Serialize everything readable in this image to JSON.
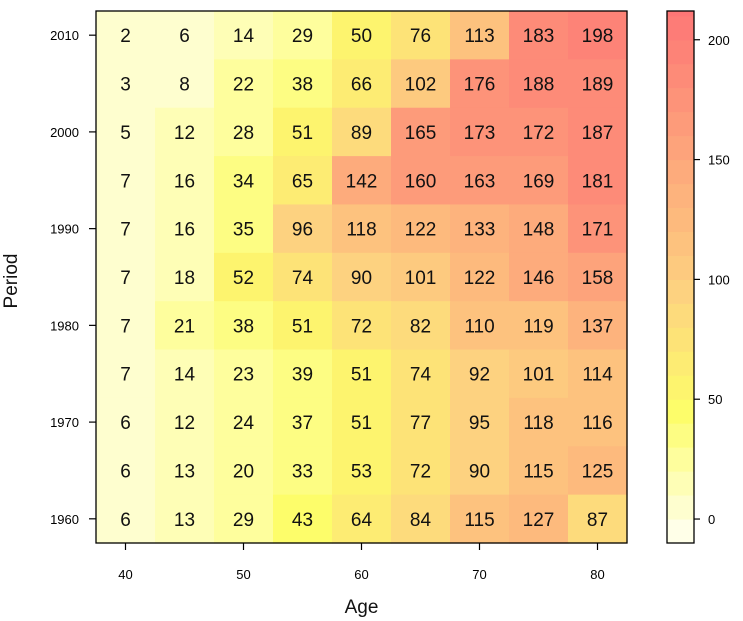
{
  "chart_data": {
    "type": "heatmap",
    "title": "",
    "xlabel": "Age",
    "ylabel": "Period",
    "x_categories": [
      40,
      45,
      50,
      55,
      60,
      65,
      70,
      75,
      80
    ],
    "y_categories": [
      2010,
      2005,
      2000,
      1995,
      1990,
      1985,
      1980,
      1975,
      1970,
      1965,
      1960
    ],
    "x_ticks": [
      "40",
      "50",
      "60",
      "70",
      "80"
    ],
    "y_ticks": [
      "2010",
      "2000",
      "1990",
      "1980",
      "1970",
      "1960"
    ],
    "x_range": [
      37.5,
      82.5
    ],
    "y_range": [
      1957.5,
      2012.5
    ],
    "values": [
      [
        2,
        6,
        14,
        29,
        50,
        76,
        113,
        183,
        198
      ],
      [
        3,
        8,
        22,
        38,
        66,
        102,
        176,
        188,
        189
      ],
      [
        5,
        12,
        28,
        51,
        89,
        165,
        173,
        172,
        187
      ],
      [
        7,
        16,
        34,
        65,
        142,
        160,
        163,
        169,
        181
      ],
      [
        7,
        16,
        35,
        96,
        118,
        122,
        133,
        148,
        171
      ],
      [
        7,
        18,
        52,
        74,
        90,
        101,
        122,
        146,
        158
      ],
      [
        7,
        21,
        38,
        51,
        72,
        82,
        110,
        119,
        137
      ],
      [
        7,
        14,
        23,
        39,
        51,
        74,
        92,
        101,
        114
      ],
      [
        6,
        12,
        24,
        37,
        51,
        77,
        95,
        118,
        116
      ],
      [
        6,
        13,
        20,
        33,
        53,
        72,
        90,
        115,
        125
      ],
      [
        6,
        13,
        29,
        43,
        64,
        84,
        115,
        127,
        87
      ]
    ],
    "colorbar": {
      "range": [
        -10,
        212
      ],
      "bin_width": 10,
      "ticks": [
        "0",
        "50",
        "100",
        "150",
        "200"
      ],
      "tick_values": [
        0,
        50,
        100,
        150,
        200
      ],
      "colors": {
        "low": "#fffff5",
        "mid": "#fdfd6a",
        "orange": "#fdd280",
        "high": "#fd7676"
      }
    },
    "grid": false,
    "legend": "colorbar-right"
  }
}
